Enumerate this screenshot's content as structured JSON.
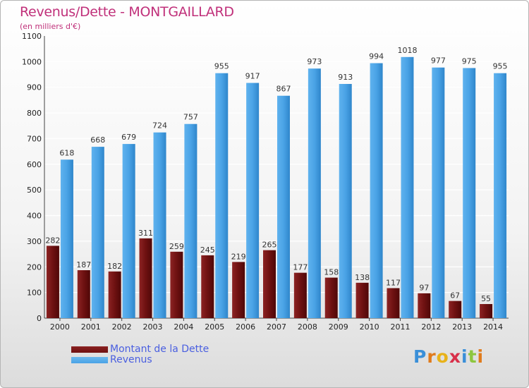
{
  "title": "Revenus/Dette - MONTGAILLARD",
  "subtitle": "(en milliers d'€)",
  "colors": {
    "title": "#c0307a",
    "dette": "#6e1111",
    "revenus": "#4aa3e6",
    "legend_text": "#4a5fe0"
  },
  "chart_data": {
    "type": "bar",
    "categories": [
      "2000",
      "2001",
      "2002",
      "2003",
      "2004",
      "2005",
      "2006",
      "2007",
      "2008",
      "2009",
      "2010",
      "2011",
      "2012",
      "2013",
      "2014"
    ],
    "series": [
      {
        "name": "Montant de la Dette",
        "values": [
          282,
          187,
          182,
          311,
          259,
          245,
          219,
          265,
          177,
          158,
          138,
          117,
          97,
          67,
          55
        ]
      },
      {
        "name": "Revenus",
        "values": [
          618,
          668,
          679,
          724,
          757,
          955,
          917,
          867,
          973,
          913,
          994,
          1018,
          977,
          975,
          955
        ]
      }
    ],
    "title": "Revenus/Dette - MONTGAILLARD",
    "subtitle": "(en milliers d'€)",
    "xlabel": "",
    "ylabel": "",
    "ylim": [
      0,
      1100
    ],
    "yticks": [
      0,
      100,
      200,
      300,
      400,
      500,
      600,
      700,
      800,
      900,
      1000,
      1100
    ],
    "grid": true,
    "legend": "bottom-left"
  },
  "legend": {
    "items": [
      {
        "label": "Montant de la Dette",
        "color": "#6e1111"
      },
      {
        "label": "Revenus",
        "color": "#4aa3e6"
      }
    ]
  },
  "logo": {
    "letters": [
      "P",
      "r",
      "o",
      "x",
      "i",
      "t",
      "i"
    ],
    "colors": [
      "#3a8fd8",
      "#e07b1c",
      "#e8b21a",
      "#d8304a",
      "#3a8fd8",
      "#8dc63f",
      "#e07b1c"
    ]
  }
}
